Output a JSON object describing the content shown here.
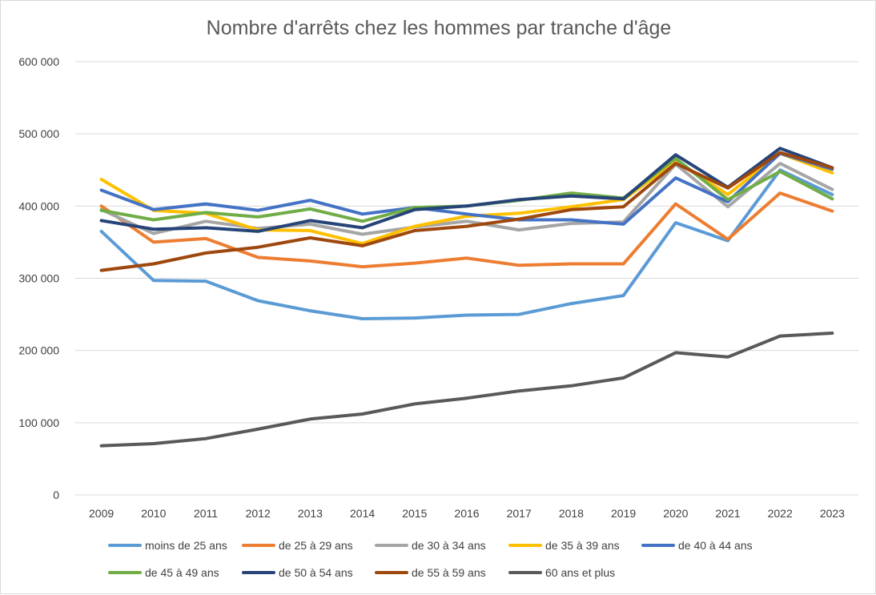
{
  "chart_data": {
    "type": "line",
    "title": "Nombre d'arrêts chez les hommes par tranche d'âge",
    "xlabel": "",
    "ylabel": "",
    "ylim": [
      0,
      600000
    ],
    "yticks": [
      0,
      100000,
      200000,
      300000,
      400000,
      500000,
      600000
    ],
    "ytick_labels": [
      "0",
      "100 000",
      "200 000",
      "300 000",
      "400 000",
      "500 000",
      "600 000"
    ],
    "grid": true,
    "legend_position": "bottom",
    "categories": [
      "2009",
      "2010",
      "2011",
      "2012",
      "2013",
      "2014",
      "2015",
      "2016",
      "2017",
      "2018",
      "2019",
      "2020",
      "2021",
      "2022",
      "2023"
    ],
    "series": [
      {
        "name": "moins de 25 ans",
        "color": "#5B9BD5",
        "values": [
          365000,
          297000,
          296000,
          269000,
          255000,
          244000,
          245000,
          249000,
          250000,
          265000,
          276000,
          377000,
          352000,
          450000,
          416000
        ]
      },
      {
        "name": "de 25 à 29 ans",
        "color": "#ED7D31",
        "values": [
          400000,
          350000,
          355000,
          329000,
          324000,
          316000,
          321000,
          328000,
          318000,
          320000,
          320000,
          403000,
          354000,
          418000,
          393000
        ]
      },
      {
        "name": "de 30 à 34 ans",
        "color": "#A5A5A5",
        "values": [
          395000,
          362000,
          379000,
          369000,
          375000,
          361000,
          371000,
          379000,
          367000,
          376000,
          378000,
          458000,
          399000,
          459000,
          423000
        ]
      },
      {
        "name": "de 35 à 39 ans",
        "color": "#FFC000",
        "values": [
          437000,
          394000,
          390000,
          367000,
          366000,
          348000,
          372000,
          386000,
          390000,
          399000,
          409000,
          462000,
          416000,
          473000,
          446000
        ]
      },
      {
        "name": "de 40 à 44 ans",
        "color": "#4472C4",
        "values": [
          422000,
          395000,
          403000,
          394000,
          408000,
          389000,
          398000,
          389000,
          381000,
          381000,
          375000,
          439000,
          406000,
          473000,
          451000
        ]
      },
      {
        "name": "de 45 à 49 ans",
        "color": "#70AD47",
        "values": [
          394000,
          381000,
          391000,
          385000,
          396000,
          379000,
          398000,
          400000,
          408000,
          418000,
          411000,
          466000,
          409000,
          448000,
          410000
        ]
      },
      {
        "name": "de 50 à 54 ans",
        "color": "#264478",
        "values": [
          380000,
          368000,
          370000,
          365000,
          380000,
          370000,
          395000,
          400000,
          409000,
          414000,
          410000,
          471000,
          426000,
          480000,
          453000
        ]
      },
      {
        "name": "de 55 à 59 ans",
        "color": "#9E480E",
        "values": [
          311000,
          320000,
          335000,
          343000,
          356000,
          345000,
          366000,
          372000,
          382000,
          395000,
          399000,
          459000,
          425000,
          474000,
          453000
        ]
      },
      {
        "name": "60 ans et plus",
        "color": "#595959",
        "values": [
          68000,
          71000,
          78000,
          91000,
          105000,
          112000,
          126000,
          134000,
          144000,
          151000,
          162000,
          197000,
          191000,
          220000,
          224000
        ]
      }
    ]
  }
}
